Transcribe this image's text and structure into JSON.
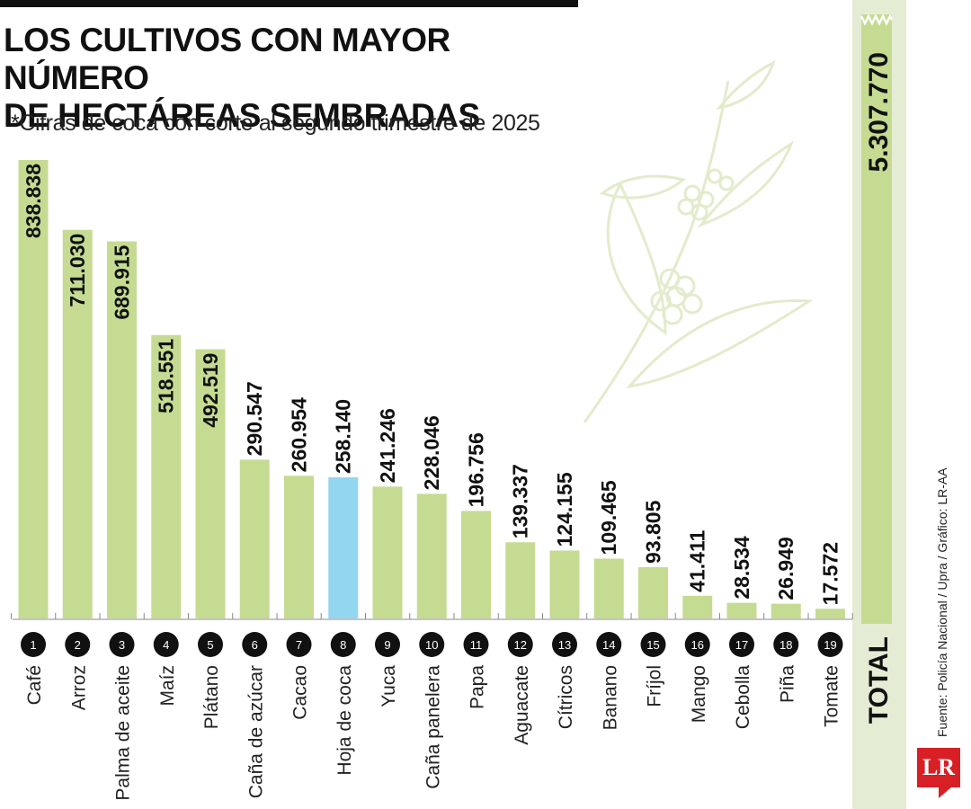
{
  "header": {
    "title_line1": "LOS CULTIVOS CON MAYOR NÚMERO",
    "title_line2": "DE HECTÁREAS SEMBRADAS",
    "subtitle": "*Cifras de coca con corte al segundo trimestre de 2025"
  },
  "footer": {
    "source": "Fuente: Policía Nacional / Upra / Gráfico: LR-AA",
    "logo_text": "LR"
  },
  "colors": {
    "bar": "#c5db92",
    "highlight": "#92d6ef",
    "total_bar": "#c5db92",
    "number_circle": "#111111",
    "logo": "#d81f26"
  },
  "chart_data": {
    "type": "bar",
    "title": "LOS CULTIVOS CON MAYOR NÚMERO DE HECTÁREAS SEMBRADAS",
    "highlight_category": "Hoja de coca",
    "categories": [
      "Café",
      "Arroz",
      "Palma de aceite",
      "Maíz",
      "Plátano",
      "Caña de azúcar",
      "Cacao",
      "Hoja de coca",
      "Yuca",
      "Caña panelera",
      "Papa",
      "Aguacate",
      "Cítricos",
      "Banano",
      "Fríjol",
      "Mango",
      "Cebolla",
      "Piña",
      "Tomate"
    ],
    "ranks": [
      "1",
      "2",
      "3",
      "4",
      "5",
      "6",
      "7",
      "8",
      "9",
      "10",
      "11",
      "12",
      "13",
      "14",
      "15",
      "16",
      "17",
      "18",
      "19"
    ],
    "values": [
      838838,
      711030,
      689915,
      518551,
      492519,
      290547,
      260954,
      258140,
      241246,
      228046,
      196756,
      139337,
      124155,
      109465,
      93805,
      41411,
      28534,
      26949,
      17572
    ],
    "value_labels": [
      "838.838",
      "711.030",
      "689.915",
      "518.551",
      "492.519",
      "290.547",
      "260.954",
      "258.140",
      "241.246",
      "228.046",
      "196.756",
      "139.337",
      "124.155",
      "109.465",
      "93.805",
      "41.411",
      "28.534",
      "26.949",
      "17.572"
    ],
    "ylim": [
      0,
      838838
    ],
    "grid": false,
    "total": {
      "label": "TOTAL",
      "value": 5307770,
      "value_label": "5.307.770"
    }
  }
}
